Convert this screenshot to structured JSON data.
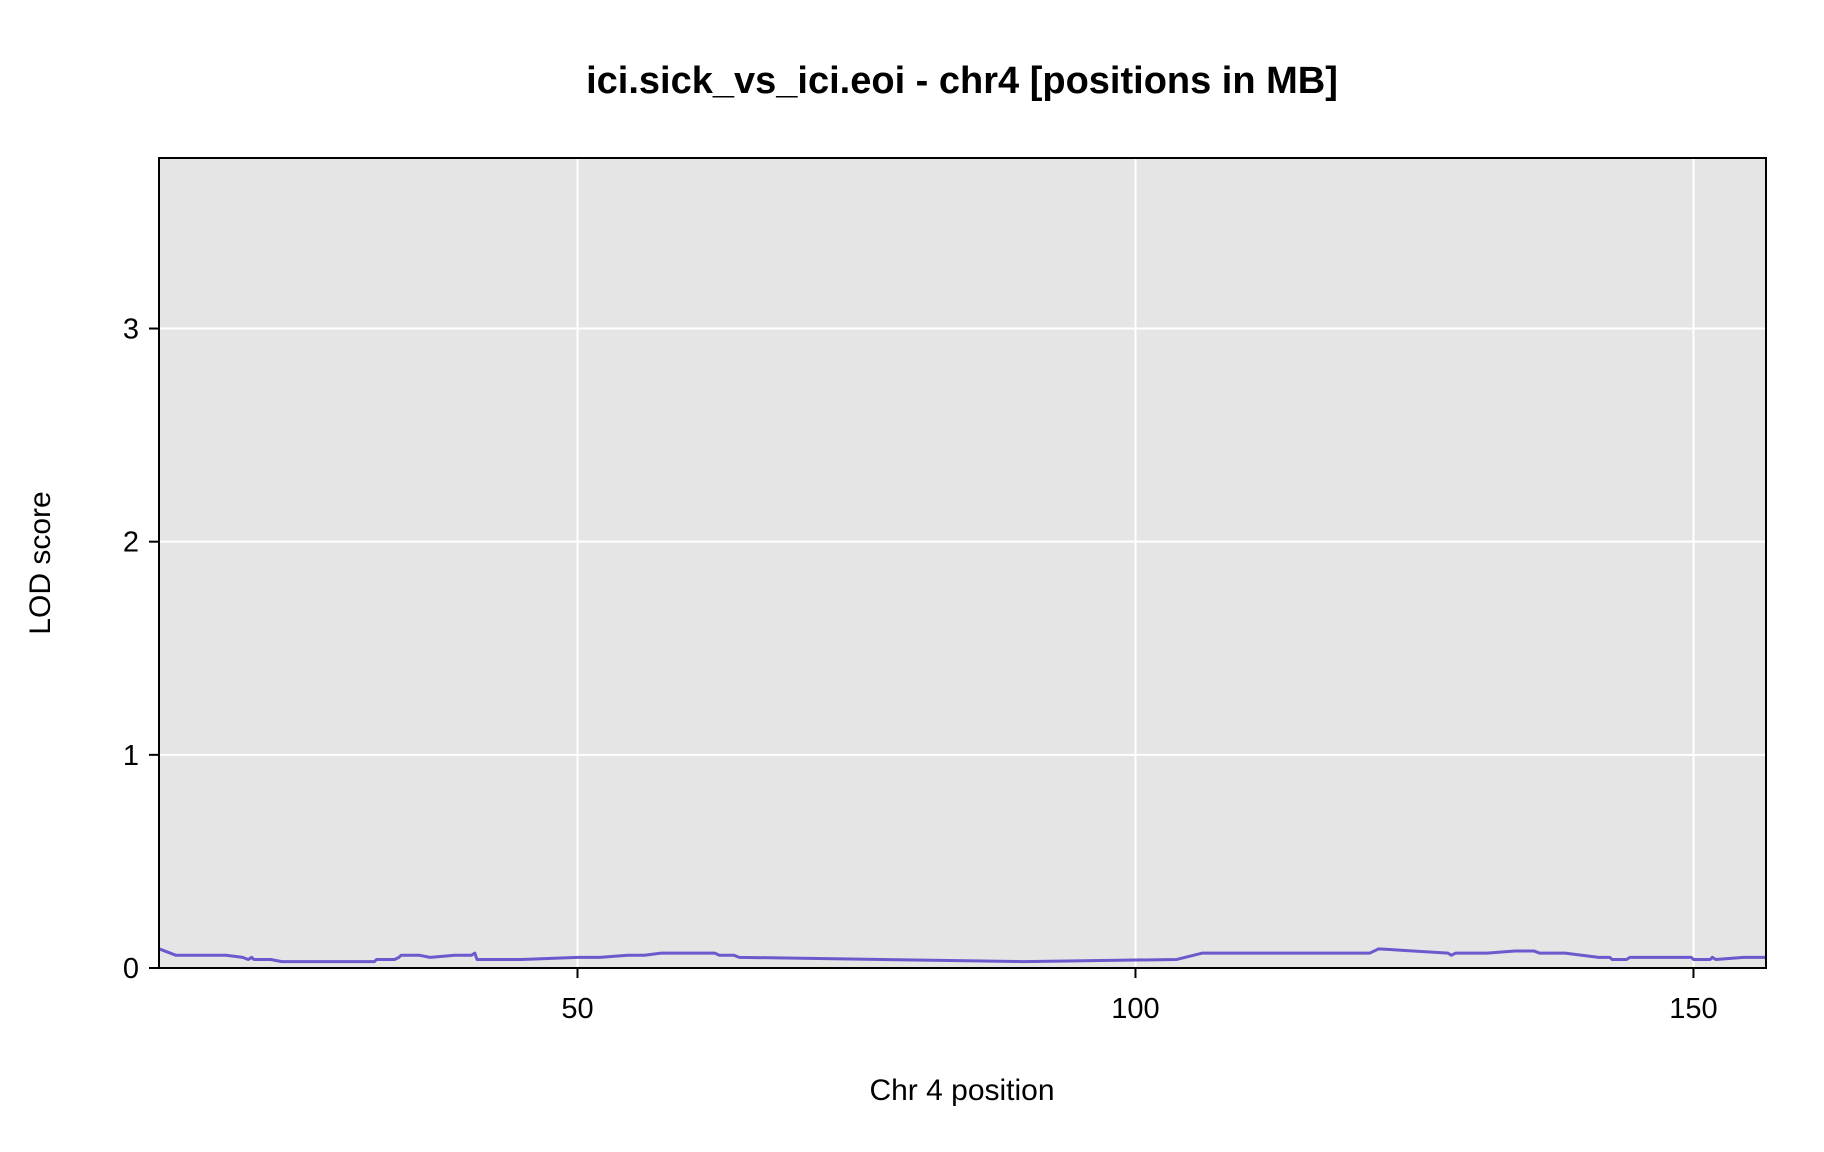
{
  "chart_data": {
    "type": "line",
    "title": "ici.sick_vs_ici.eoi - chr4 [positions in MB]",
    "xlabel": "Chr 4 position",
    "ylabel": "LOD score",
    "xlim": [
      12.5,
      156.5
    ],
    "ylim": [
      0,
      3.8
    ],
    "x_ticks": [
      50,
      100,
      150
    ],
    "y_ticks": [
      0,
      1,
      2,
      3
    ],
    "grid": true,
    "legend": "none",
    "background_color": "#e5e5e5",
    "grid_color": "#ffffff",
    "series": [
      {
        "color": "#6a5acd",
        "points": [
          [
            12.5,
            0.09
          ],
          [
            14.0,
            0.06
          ],
          [
            18.5,
            0.06
          ],
          [
            20.0,
            0.05
          ],
          [
            20.5,
            0.04
          ],
          [
            20.8,
            0.05
          ],
          [
            21.0,
            0.04
          ],
          [
            22.5,
            0.04
          ],
          [
            23.5,
            0.03
          ],
          [
            31.8,
            0.03
          ],
          [
            32.0,
            0.04
          ],
          [
            33.6,
            0.04
          ],
          [
            34.0,
            0.05
          ],
          [
            34.2,
            0.06
          ],
          [
            35.8,
            0.06
          ],
          [
            36.8,
            0.05
          ],
          [
            39.0,
            0.06
          ],
          [
            40.5,
            0.06
          ],
          [
            40.8,
            0.07
          ],
          [
            41.0,
            0.04
          ],
          [
            45.0,
            0.04
          ],
          [
            50.0,
            0.05
          ],
          [
            52.0,
            0.05
          ],
          [
            54.5,
            0.06
          ],
          [
            56.0,
            0.06
          ],
          [
            57.5,
            0.07
          ],
          [
            62.3,
            0.07
          ],
          [
            62.7,
            0.06
          ],
          [
            64.0,
            0.06
          ],
          [
            64.5,
            0.05
          ],
          [
            90.0,
            0.03
          ],
          [
            103.7,
            0.04
          ],
          [
            106.0,
            0.07
          ],
          [
            121.0,
            0.07
          ],
          [
            121.8,
            0.09
          ],
          [
            128.0,
            0.07
          ],
          [
            128.3,
            0.06
          ],
          [
            128.7,
            0.07
          ],
          [
            131.5,
            0.07
          ],
          [
            134.0,
            0.08
          ],
          [
            135.7,
            0.08
          ],
          [
            136.2,
            0.07
          ],
          [
            138.5,
            0.07
          ],
          [
            141.5,
            0.05
          ],
          [
            142.5,
            0.05
          ],
          [
            142.7,
            0.04
          ],
          [
            144.0,
            0.04
          ],
          [
            144.3,
            0.05
          ],
          [
            149.8,
            0.05
          ],
          [
            150.0,
            0.04
          ],
          [
            151.5,
            0.04
          ],
          [
            151.7,
            0.05
          ],
          [
            152.0,
            0.04
          ],
          [
            154.5,
            0.05
          ],
          [
            156.5,
            0.05
          ]
        ]
      }
    ]
  }
}
